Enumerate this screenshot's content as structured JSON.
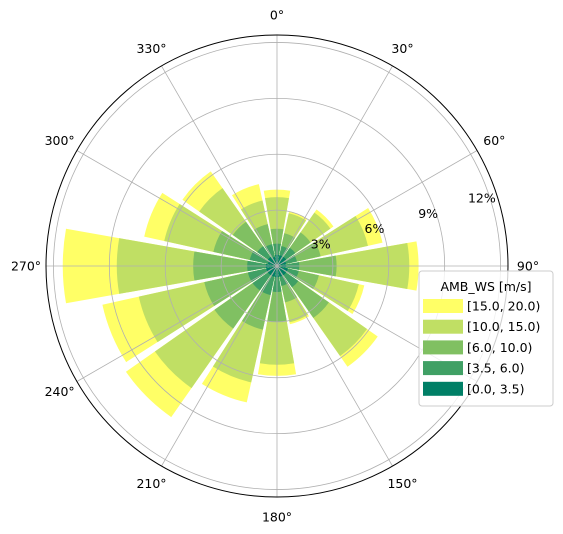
{
  "chart_data": {
    "type": "windrose",
    "direction_labels": [
      "0°",
      "30°",
      "60°",
      "90°",
      "150°",
      "180°",
      "210°",
      "240°",
      "270°",
      "300°",
      "330°"
    ],
    "direction_label_angles": [
      0,
      30,
      60,
      90,
      150,
      180,
      210,
      240,
      270,
      300,
      330
    ],
    "radial_ticks": [
      3,
      6,
      9,
      12
    ],
    "radial_tick_labels": [
      "3%",
      "6%",
      "9%",
      "12%"
    ],
    "rmax": 12.4,
    "grid": true,
    "legend": {
      "title": "AMB_WS [m/s]",
      "placement": "right",
      "entries": [
        "[15.0, 20.0)",
        "[10.0, 15.0)",
        "[6.0, 10.0)",
        "[3.5, 6.0)",
        "[0.0, 3.5)"
      ]
    },
    "colors": [
      "#007f66",
      "#40a065",
      "#80c062",
      "#c0df64",
      "#ffff66"
    ],
    "bins": [
      "[0.0, 3.5)",
      "[3.5, 6.0)",
      "[6.0, 10.0)",
      "[10.0, 15.0)",
      "[15.0, 20.0)"
    ],
    "sector_width_deg": 20,
    "directions_deg": [
      0,
      22.5,
      45,
      67.5,
      90,
      112.5,
      135,
      157.5,
      180,
      202.5,
      225,
      247.5,
      270,
      292.5,
      315,
      337.5
    ],
    "cumulative_percent": [
      [
        0.6,
        1.2,
        2.0,
        3.7,
        4.1
      ],
      [
        0.6,
        1.1,
        1.8,
        2.9,
        3.0
      ],
      [
        0.6,
        1.2,
        2.2,
        3.5,
        3.7
      ],
      [
        0.5,
        1.1,
        2.4,
        5.0,
        5.8
      ],
      [
        0.5,
        1.2,
        3.2,
        7.1,
        7.6
      ],
      [
        0.6,
        1.2,
        2.3,
        4.5,
        4.8
      ],
      [
        0.6,
        1.4,
        3.4,
        5.9,
        6.6
      ],
      [
        0.6,
        1.1,
        2.0,
        3.1,
        3.2
      ],
      [
        0.6,
        1.4,
        3.0,
        5.3,
        5.9
      ],
      [
        0.6,
        1.6,
        3.5,
        6.4,
        7.5
      ],
      [
        0.6,
        1.6,
        4.1,
        8.0,
        9.9
      ],
      [
        0.6,
        1.6,
        4.0,
        7.6,
        9.6
      ],
      [
        0.6,
        1.6,
        4.5,
        8.6,
        11.5
      ],
      [
        0.5,
        1.5,
        3.5,
        6.2,
        7.3
      ],
      [
        0.6,
        1.3,
        2.9,
        5.1,
        6.2
      ],
      [
        0.5,
        1.2,
        2.3,
        3.6,
        4.5
      ]
    ]
  }
}
